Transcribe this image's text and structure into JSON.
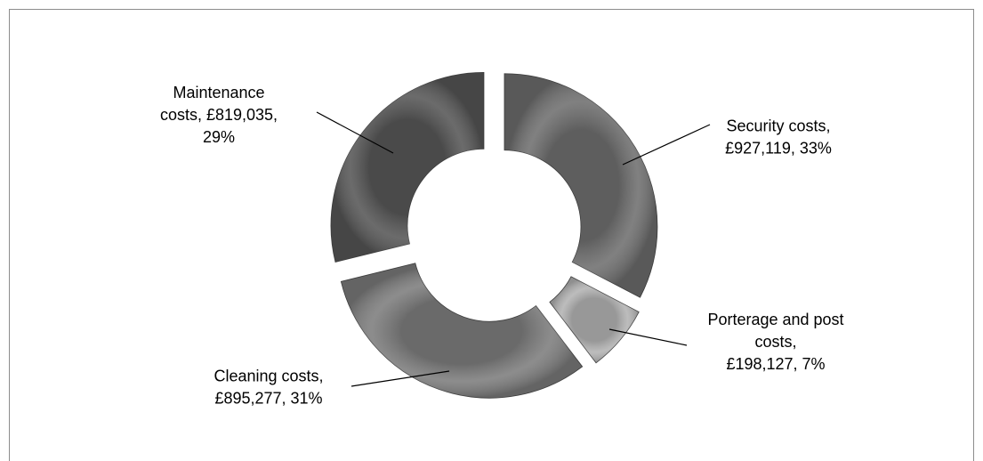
{
  "chart_data": {
    "type": "donut",
    "values": [
      927119,
      198127,
      895277,
      819035
    ],
    "value_labels": [
      "Security costs,\n£927,119, 33%",
      "Porterage and post\ncosts,\n£198,127, 7%",
      "Cleaning costs,\n£895,277, 31%",
      "Maintenance\ncosts, £819,035,\n29%"
    ],
    "colors": [
      "#6f6f6f",
      "#b3b3b3",
      "#7d7d7d",
      "#575757"
    ]
  }
}
